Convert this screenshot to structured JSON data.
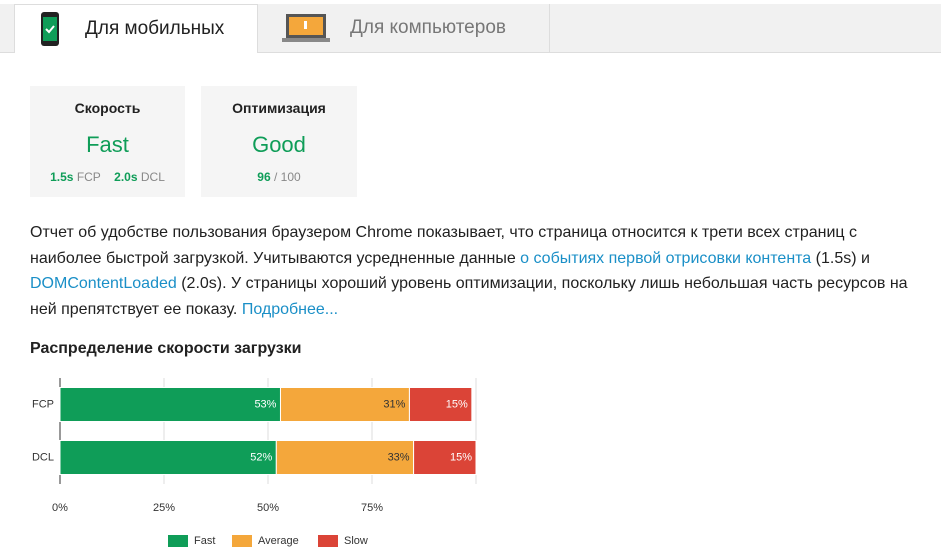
{
  "tabs": [
    {
      "label": "Для мобильных"
    },
    {
      "label": "Для компьютеров"
    }
  ],
  "cards": [
    {
      "title": "Скорость",
      "verdict": "Fast",
      "metrics": [
        {
          "value": "1.5s",
          "label": "FCP"
        },
        {
          "value": "2.0s",
          "label": "DCL"
        }
      ]
    },
    {
      "title": "Оптимизация",
      "verdict": "Good",
      "score": 96,
      "out_of": "/ 100"
    }
  ],
  "description": [
    {
      "text": "Отчет об удобстве пользования браузером Chrome показывает, что страница относится к трети всех страниц с наиболее быстрой загрузкой. Учитываются усредненные данные "
    },
    {
      "text": "о событиях первой отрисовки контента",
      "link": true
    },
    {
      "text": " (1.5s) и "
    },
    {
      "text": "DOMContentLoaded",
      "link": true
    },
    {
      "text": " (2.0s). У страницы хороший уровень оптимизации, поскольку лишь небольшая часть ресурсов на ней препятствует ее показу. "
    },
    {
      "text": "Подробнее...",
      "link": true
    }
  ],
  "chart_data": {
    "type": "stacked-bar-horizontal",
    "title": "Распределение скорости загрузки",
    "categories": [
      "FCP",
      "DCL"
    ],
    "series": [
      {
        "name": "Fast",
        "color": "#0f9d58",
        "values": [
          53,
          52
        ],
        "value_labels": [
          "53%",
          "52%"
        ]
      },
      {
        "name": "Average",
        "color": "#f4a73b",
        "values": [
          31,
          33
        ],
        "value_labels": [
          "31%",
          "33%"
        ]
      },
      {
        "name": "Slow",
        "color": "#db4437",
        "values": [
          15,
          15
        ],
        "value_labels": [
          "15%",
          "15%"
        ]
      }
    ],
    "xlim": [
      0,
      100
    ],
    "xticks": [
      {
        "value": 0,
        "label": "0%"
      },
      {
        "value": 25,
        "label": "25%"
      },
      {
        "value": 50,
        "label": "50%"
      },
      {
        "value": 75,
        "label": "75%"
      }
    ],
    "grid": true,
    "legend": "bottom"
  }
}
